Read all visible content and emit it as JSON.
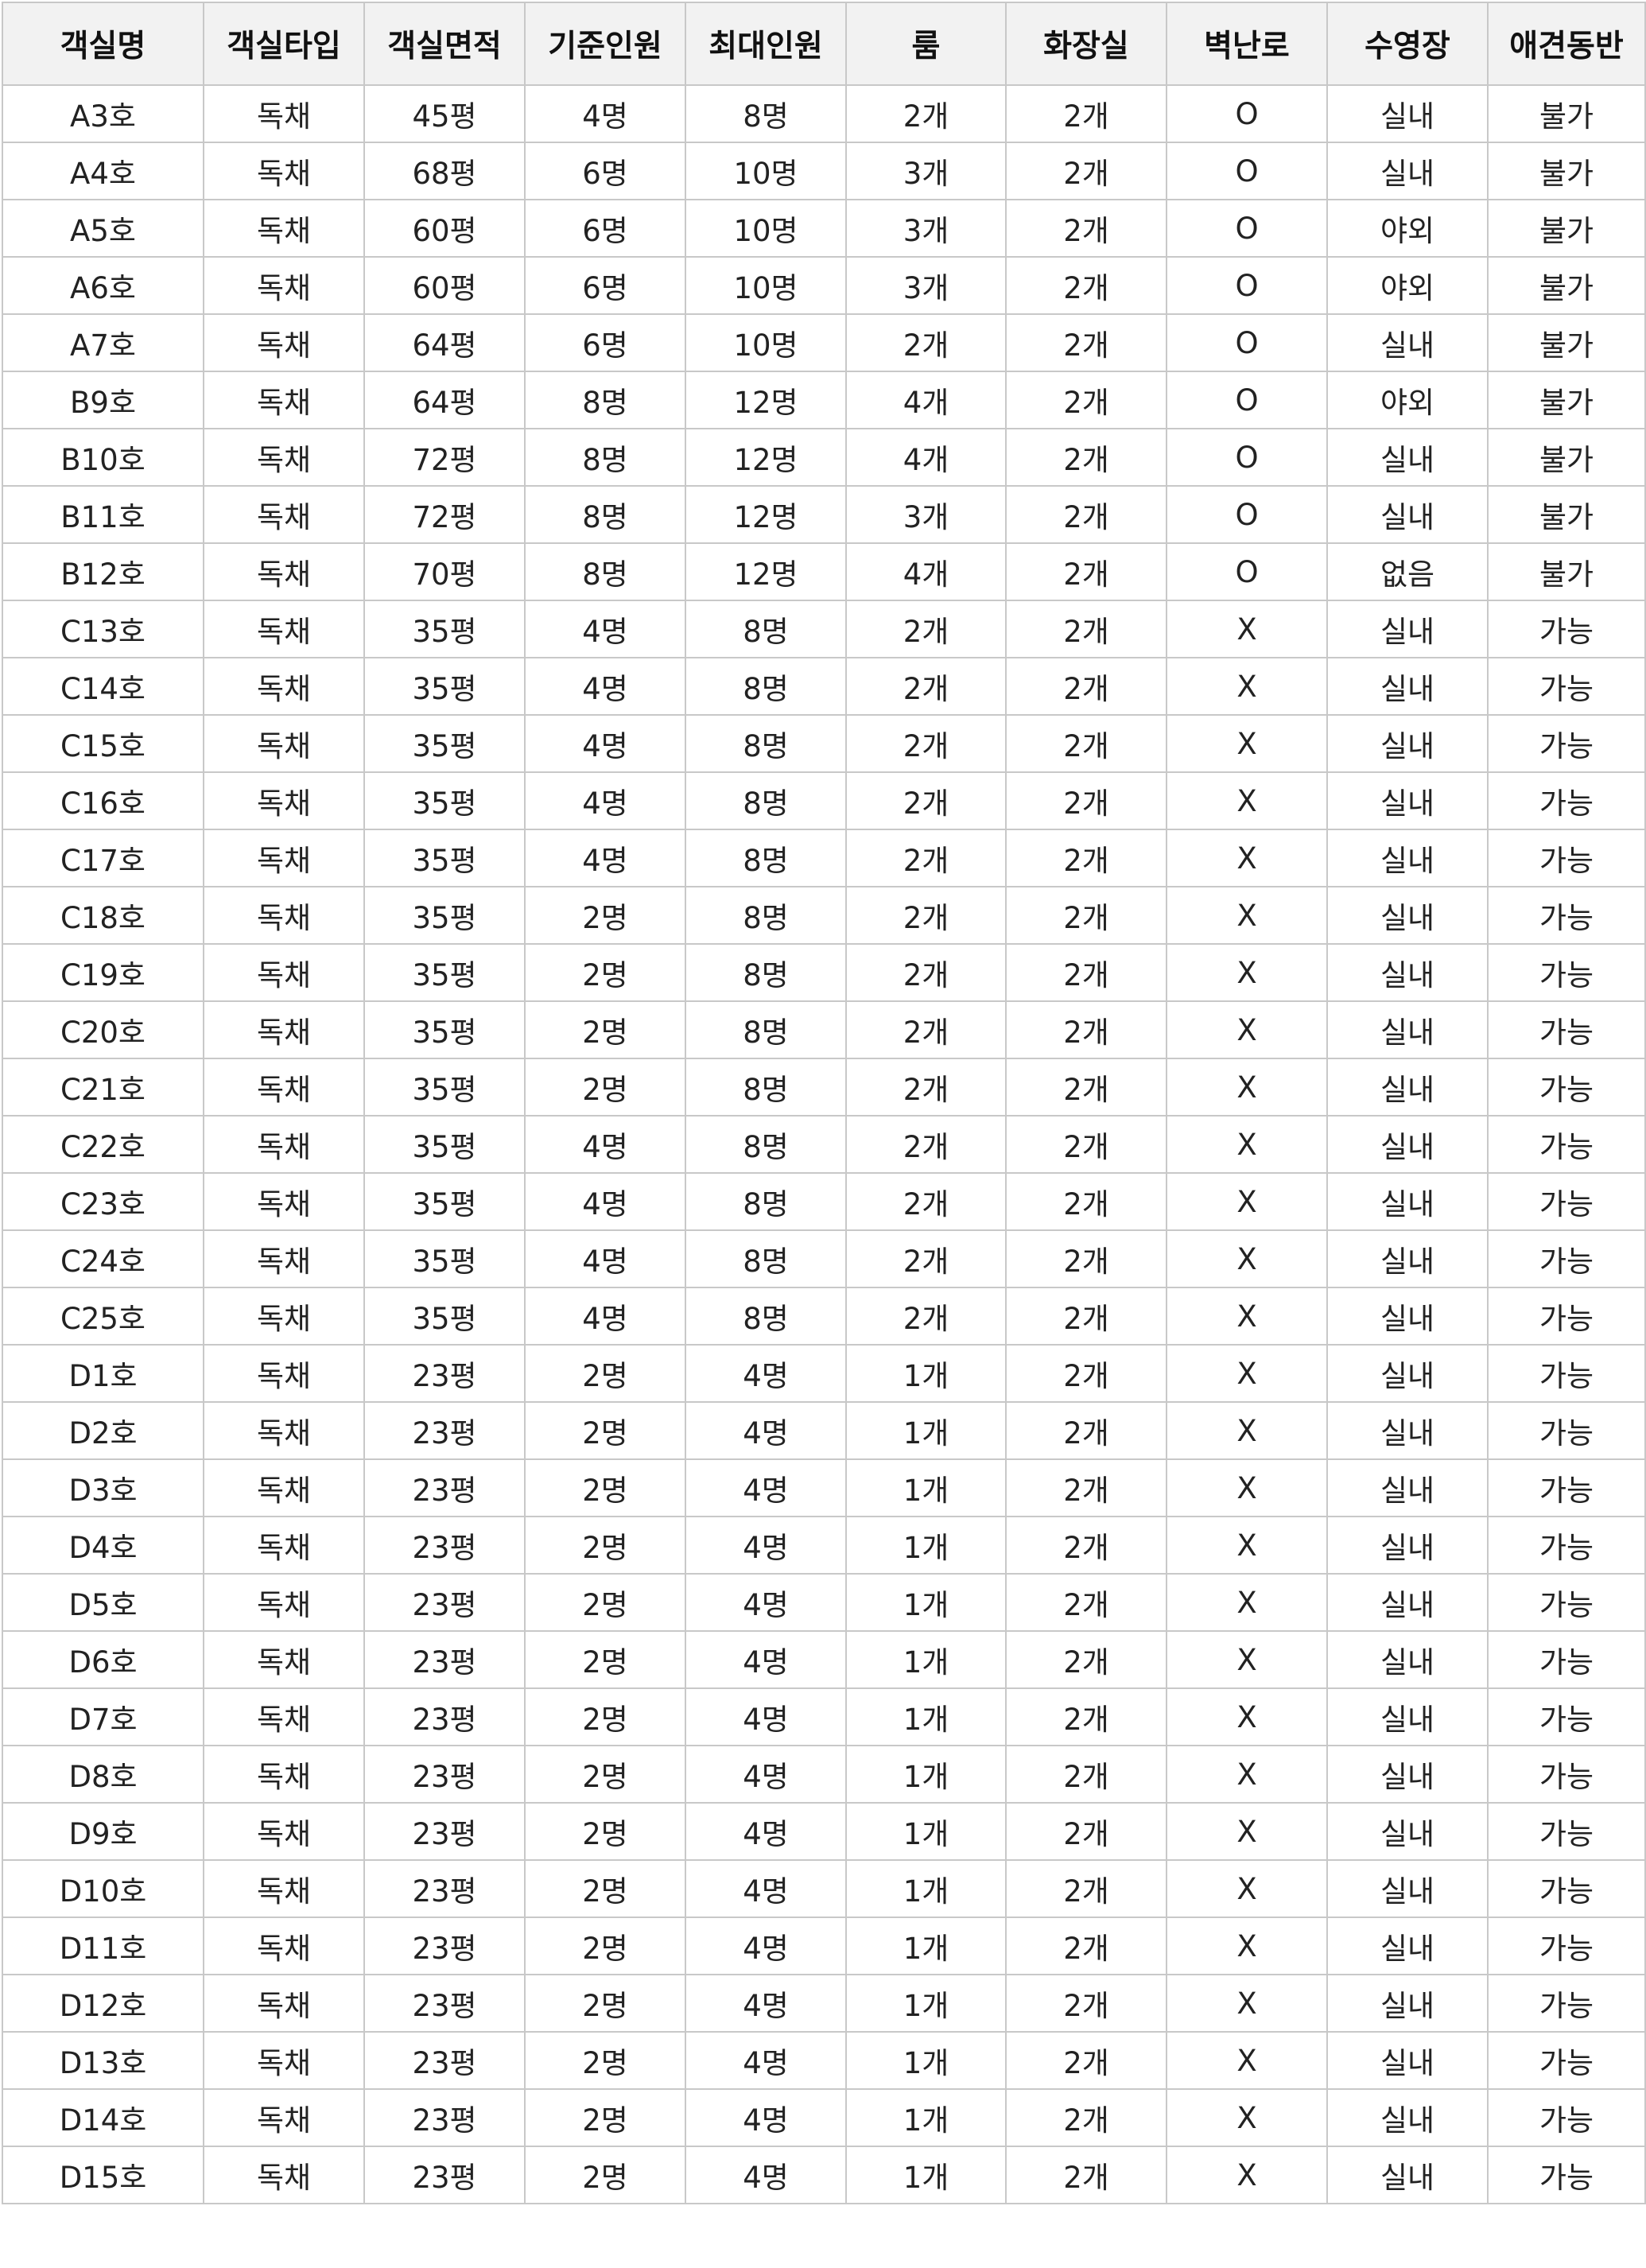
{
  "table": {
    "headers": [
      "객실명",
      "객실타입",
      "객실면적",
      "기준인원",
      "최대인원",
      "룸",
      "화장실",
      "벽난로",
      "수영장",
      "애견동반"
    ],
    "rows": [
      [
        "A3호",
        "독채",
        "45평",
        "4명",
        "8명",
        "2개",
        "2개",
        "O",
        "실내",
        "불가"
      ],
      [
        "A4호",
        "독채",
        "68평",
        "6명",
        "10명",
        "3개",
        "2개",
        "O",
        "실내",
        "불가"
      ],
      [
        "A5호",
        "독채",
        "60평",
        "6명",
        "10명",
        "3개",
        "2개",
        "O",
        "야외",
        "불가"
      ],
      [
        "A6호",
        "독채",
        "60평",
        "6명",
        "10명",
        "3개",
        "2개",
        "O",
        "야외",
        "불가"
      ],
      [
        "A7호",
        "독채",
        "64평",
        "6명",
        "10명",
        "2개",
        "2개",
        "O",
        "실내",
        "불가"
      ],
      [
        "B9호",
        "독채",
        "64평",
        "8명",
        "12명",
        "4개",
        "2개",
        "O",
        "야외",
        "불가"
      ],
      [
        "B10호",
        "독채",
        "72평",
        "8명",
        "12명",
        "4개",
        "2개",
        "O",
        "실내",
        "불가"
      ],
      [
        "B11호",
        "독채",
        "72평",
        "8명",
        "12명",
        "3개",
        "2개",
        "O",
        "실내",
        "불가"
      ],
      [
        "B12호",
        "독채",
        "70평",
        "8명",
        "12명",
        "4개",
        "2개",
        "O",
        "없음",
        "불가"
      ],
      [
        "C13호",
        "독채",
        "35평",
        "4명",
        "8명",
        "2개",
        "2개",
        "X",
        "실내",
        "가능"
      ],
      [
        "C14호",
        "독채",
        "35평",
        "4명",
        "8명",
        "2개",
        "2개",
        "X",
        "실내",
        "가능"
      ],
      [
        "C15호",
        "독채",
        "35평",
        "4명",
        "8명",
        "2개",
        "2개",
        "X",
        "실내",
        "가능"
      ],
      [
        "C16호",
        "독채",
        "35평",
        "4명",
        "8명",
        "2개",
        "2개",
        "X",
        "실내",
        "가능"
      ],
      [
        "C17호",
        "독채",
        "35평",
        "4명",
        "8명",
        "2개",
        "2개",
        "X",
        "실내",
        "가능"
      ],
      [
        "C18호",
        "독채",
        "35평",
        "2명",
        "8명",
        "2개",
        "2개",
        "X",
        "실내",
        "가능"
      ],
      [
        "C19호",
        "독채",
        "35평",
        "2명",
        "8명",
        "2개",
        "2개",
        "X",
        "실내",
        "가능"
      ],
      [
        "C20호",
        "독채",
        "35평",
        "2명",
        "8명",
        "2개",
        "2개",
        "X",
        "실내",
        "가능"
      ],
      [
        "C21호",
        "독채",
        "35평",
        "2명",
        "8명",
        "2개",
        "2개",
        "X",
        "실내",
        "가능"
      ],
      [
        "C22호",
        "독채",
        "35평",
        "4명",
        "8명",
        "2개",
        "2개",
        "X",
        "실내",
        "가능"
      ],
      [
        "C23호",
        "독채",
        "35평",
        "4명",
        "8명",
        "2개",
        "2개",
        "X",
        "실내",
        "가능"
      ],
      [
        "C24호",
        "독채",
        "35평",
        "4명",
        "8명",
        "2개",
        "2개",
        "X",
        "실내",
        "가능"
      ],
      [
        "C25호",
        "독채",
        "35평",
        "4명",
        "8명",
        "2개",
        "2개",
        "X",
        "실내",
        "가능"
      ],
      [
        "D1호",
        "독채",
        "23평",
        "2명",
        "4명",
        "1개",
        "2개",
        "X",
        "실내",
        "가능"
      ],
      [
        "D2호",
        "독채",
        "23평",
        "2명",
        "4명",
        "1개",
        "2개",
        "X",
        "실내",
        "가능"
      ],
      [
        "D3호",
        "독채",
        "23평",
        "2명",
        "4명",
        "1개",
        "2개",
        "X",
        "실내",
        "가능"
      ],
      [
        "D4호",
        "독채",
        "23평",
        "2명",
        "4명",
        "1개",
        "2개",
        "X",
        "실내",
        "가능"
      ],
      [
        "D5호",
        "독채",
        "23평",
        "2명",
        "4명",
        "1개",
        "2개",
        "X",
        "실내",
        "가능"
      ],
      [
        "D6호",
        "독채",
        "23평",
        "2명",
        "4명",
        "1개",
        "2개",
        "X",
        "실내",
        "가능"
      ],
      [
        "D7호",
        "독채",
        "23평",
        "2명",
        "4명",
        "1개",
        "2개",
        "X",
        "실내",
        "가능"
      ],
      [
        "D8호",
        "독채",
        "23평",
        "2명",
        "4명",
        "1개",
        "2개",
        "X",
        "실내",
        "가능"
      ],
      [
        "D9호",
        "독채",
        "23평",
        "2명",
        "4명",
        "1개",
        "2개",
        "X",
        "실내",
        "가능"
      ],
      [
        "D10호",
        "독채",
        "23평",
        "2명",
        "4명",
        "1개",
        "2개",
        "X",
        "실내",
        "가능"
      ],
      [
        "D11호",
        "독채",
        "23평",
        "2명",
        "4명",
        "1개",
        "2개",
        "X",
        "실내",
        "가능"
      ],
      [
        "D12호",
        "독채",
        "23평",
        "2명",
        "4명",
        "1개",
        "2개",
        "X",
        "실내",
        "가능"
      ],
      [
        "D13호",
        "독채",
        "23평",
        "2명",
        "4명",
        "1개",
        "2개",
        "X",
        "실내",
        "가능"
      ],
      [
        "D14호",
        "독채",
        "23평",
        "2명",
        "4명",
        "1개",
        "2개",
        "X",
        "실내",
        "가능"
      ],
      [
        "D15호",
        "독채",
        "23평",
        "2명",
        "4명",
        "1개",
        "2개",
        "X",
        "실내",
        "가능"
      ]
    ]
  }
}
